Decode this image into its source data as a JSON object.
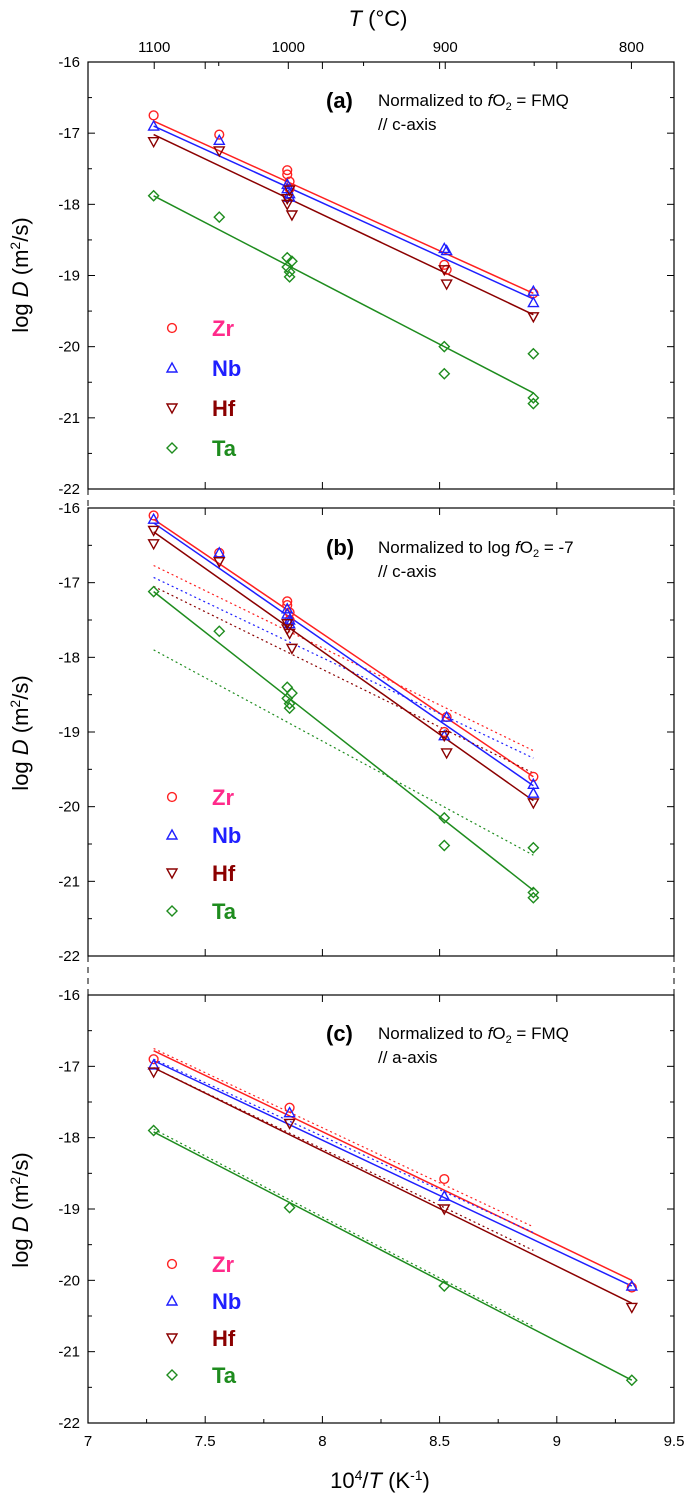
{
  "figure": {
    "top_axis_title": "T (°C)",
    "top_axis_title_var": "T",
    "top_axis_title_unit": " (°C)",
    "x_axis_title_prefix": "10",
    "x_axis_title_sup": "4",
    "x_axis_title_mid": "/",
    "x_axis_title_var": "T",
    "x_axis_title_unit": " (K",
    "x_axis_title_unit_sup": "-1",
    "x_axis_title_end": ")",
    "y_axis_title_prefix": "log ",
    "y_axis_title_var": "D",
    "y_axis_title_unit": " (m",
    "y_axis_title_unit_sup": "2",
    "y_axis_title_end": "/s)",
    "top_ticks": [
      {
        "label": "1100",
        "celsius": 1100
      },
      {
        "label": "1000",
        "celsius": 1000
      },
      {
        "label": "900",
        "celsius": 900
      },
      {
        "label": "800",
        "celsius": 800
      }
    ],
    "x_ticks": [
      "7",
      "7.5",
      "8",
      "8.5",
      "9",
      "9.5"
    ],
    "y_ticks": [
      "-16",
      "-17",
      "-18",
      "-19",
      "-20",
      "-21",
      "-22"
    ],
    "colors": {
      "Zr": "#ff2020",
      "Nb": "#1f1fff",
      "Hf": "#8b0000",
      "Ta": "#1e8c1e",
      "Zr_label": "#ff2a8a"
    },
    "legend": [
      {
        "label": "Zr",
        "marker": "circle"
      },
      {
        "label": "Nb",
        "marker": "triangle-up"
      },
      {
        "label": "Hf",
        "marker": "triangle-down"
      },
      {
        "label": "Ta",
        "marker": "diamond"
      }
    ]
  },
  "chart_data": [
    {
      "type": "scatter",
      "panel": "(a)",
      "annotation_line1_prefix": "Normalized to ",
      "annotation_line1_var": "f",
      "annotation_line1_sym": "O",
      "annotation_line1_sub": "2",
      "annotation_line1_suffix": " = FMQ",
      "annotation_line2": "// c-axis",
      "xlim": [
        7,
        9.5
      ],
      "ylim": [
        -22,
        -16
      ],
      "series": [
        {
          "name": "Zr",
          "points": [
            [
              7.28,
              -16.75
            ],
            [
              7.56,
              -17.02
            ],
            [
              7.85,
              -17.52
            ],
            [
              7.85,
              -17.58
            ],
            [
              7.86,
              -17.68
            ],
            [
              7.86,
              -17.78
            ],
            [
              8.52,
              -18.85
            ],
            [
              8.53,
              -18.92
            ],
            [
              8.9,
              -19.25
            ]
          ],
          "fit": [
            [
              7.28,
              -16.83
            ],
            [
              8.9,
              -19.25
            ]
          ]
        },
        {
          "name": "Nb",
          "points": [
            [
              7.28,
              -16.9
            ],
            [
              7.56,
              -17.1
            ],
            [
              7.85,
              -17.72
            ],
            [
              7.85,
              -17.78
            ],
            [
              7.86,
              -17.85
            ],
            [
              7.86,
              -17.9
            ],
            [
              8.52,
              -18.62
            ],
            [
              8.53,
              -18.65
            ],
            [
              8.9,
              -19.22
            ],
            [
              8.9,
              -19.38
            ]
          ],
          "fit": [
            [
              7.28,
              -16.9
            ],
            [
              8.9,
              -19.33
            ]
          ]
        },
        {
          "name": "Hf",
          "points": [
            [
              7.28,
              -17.12
            ],
            [
              7.56,
              -17.25
            ],
            [
              7.85,
              -17.92
            ],
            [
              7.85,
              -18.0
            ],
            [
              7.86,
              -17.8
            ],
            [
              7.87,
              -18.15
            ],
            [
              8.52,
              -18.92
            ],
            [
              8.53,
              -19.12
            ],
            [
              8.9,
              -19.58
            ]
          ],
          "fit": [
            [
              7.28,
              -17.02
            ],
            [
              8.9,
              -19.55
            ]
          ]
        },
        {
          "name": "Ta",
          "points": [
            [
              7.28,
              -17.88
            ],
            [
              7.56,
              -18.18
            ],
            [
              7.85,
              -18.75
            ],
            [
              7.85,
              -18.88
            ],
            [
              7.86,
              -18.95
            ],
            [
              7.86,
              -19.02
            ],
            [
              7.87,
              -18.8
            ],
            [
              8.52,
              -20.0
            ],
            [
              8.52,
              -20.38
            ],
            [
              8.9,
              -20.1
            ],
            [
              8.9,
              -20.72
            ],
            [
              8.9,
              -20.8
            ]
          ],
          "fit": [
            [
              7.28,
              -17.88
            ],
            [
              8.9,
              -20.65
            ]
          ]
        }
      ]
    },
    {
      "type": "scatter",
      "panel": "(b)",
      "annotation_line1_prefix": "Normalized to log ",
      "annotation_line1_var": "f",
      "annotation_line1_sym": "O",
      "annotation_line1_sub": "2",
      "annotation_line1_suffix": " = -7",
      "annotation_line2": "// c-axis",
      "xlim": [
        7,
        9.5
      ],
      "ylim": [
        -22,
        -16
      ],
      "series": [
        {
          "name": "Zr",
          "points": [
            [
              7.28,
              -16.1
            ],
            [
              7.56,
              -16.6
            ],
            [
              7.85,
              -17.25
            ],
            [
              7.85,
              -17.3
            ],
            [
              7.86,
              -17.4
            ],
            [
              7.86,
              -17.5
            ],
            [
              8.52,
              -19.0
            ],
            [
              8.53,
              -18.8
            ],
            [
              8.9,
              -19.6
            ]
          ],
          "fit": [
            [
              7.28,
              -16.15
            ],
            [
              8.9,
              -19.6
            ]
          ],
          "dashed": [
            [
              7.28,
              -16.77
            ],
            [
              8.9,
              -19.25
            ]
          ]
        },
        {
          "name": "Nb",
          "points": [
            [
              7.28,
              -16.15
            ],
            [
              7.56,
              -16.6
            ],
            [
              7.85,
              -17.35
            ],
            [
              7.85,
              -17.42
            ],
            [
              7.86,
              -17.5
            ],
            [
              7.86,
              -17.55
            ],
            [
              8.52,
              -19.05
            ],
            [
              8.53,
              -18.8
            ],
            [
              8.9,
              -19.7
            ],
            [
              8.9,
              -19.82
            ]
          ],
          "fit": [
            [
              7.28,
              -16.2
            ],
            [
              8.9,
              -19.72
            ]
          ],
          "dashed": [
            [
              7.28,
              -16.93
            ],
            [
              8.9,
              -19.35
            ]
          ]
        },
        {
          "name": "Hf",
          "points": [
            [
              7.28,
              -16.3
            ],
            [
              7.28,
              -16.48
            ],
            [
              7.56,
              -16.72
            ],
            [
              7.85,
              -17.55
            ],
            [
              7.85,
              -17.62
            ],
            [
              7.86,
              -17.68
            ],
            [
              7.87,
              -17.88
            ],
            [
              8.52,
              -19.05
            ],
            [
              8.53,
              -19.28
            ],
            [
              8.9,
              -19.95
            ]
          ],
          "fit": [
            [
              7.28,
              -16.32
            ],
            [
              8.9,
              -19.92
            ]
          ],
          "dashed": [
            [
              7.28,
              -17.05
            ],
            [
              8.9,
              -19.55
            ]
          ]
        },
        {
          "name": "Ta",
          "points": [
            [
              7.28,
              -17.12
            ],
            [
              7.56,
              -17.65
            ],
            [
              7.85,
              -18.4
            ],
            [
              7.85,
              -18.55
            ],
            [
              7.86,
              -18.62
            ],
            [
              7.86,
              -18.68
            ],
            [
              7.87,
              -18.48
            ],
            [
              8.52,
              -20.15
            ],
            [
              8.52,
              -20.52
            ],
            [
              8.9,
              -20.55
            ],
            [
              8.9,
              -21.15
            ],
            [
              8.9,
              -21.22
            ]
          ],
          "fit": [
            [
              7.28,
              -17.12
            ],
            [
              8.9,
              -21.12
            ]
          ],
          "dashed": [
            [
              7.28,
              -17.9
            ],
            [
              8.9,
              -20.65
            ]
          ]
        }
      ]
    },
    {
      "type": "scatter",
      "panel": "(c)",
      "annotation_line1_prefix": "Normalized to ",
      "annotation_line1_var": "f",
      "annotation_line1_sym": "O",
      "annotation_line1_sub": "2",
      "annotation_line1_suffix": " = FMQ",
      "annotation_line2": "// a-axis",
      "xlim": [
        7,
        9.5
      ],
      "ylim": [
        -22,
        -16
      ],
      "series": [
        {
          "name": "Zr",
          "points": [
            [
              7.28,
              -16.9
            ],
            [
              7.86,
              -17.58
            ],
            [
              8.52,
              -18.58
            ],
            [
              9.32,
              -20.1
            ]
          ],
          "fit": [
            [
              7.28,
              -16.78
            ],
            [
              9.32,
              -20.0
            ]
          ],
          "dashed": [
            [
              7.28,
              -16.75
            ],
            [
              8.9,
              -19.25
            ]
          ]
        },
        {
          "name": "Nb",
          "points": [
            [
              7.28,
              -16.98
            ],
            [
              7.86,
              -17.65
            ],
            [
              8.52,
              -18.82
            ],
            [
              9.32,
              -20.08
            ]
          ],
          "fit": [
            [
              7.28,
              -16.92
            ],
            [
              9.32,
              -20.08
            ]
          ],
          "dashed": [
            [
              7.28,
              -16.9
            ],
            [
              8.9,
              -19.33
            ]
          ]
        },
        {
          "name": "Hf",
          "points": [
            [
              7.28,
              -17.08
            ],
            [
              7.86,
              -17.8
            ],
            [
              8.52,
              -19.0
            ],
            [
              9.32,
              -20.38
            ]
          ],
          "fit": [
            [
              7.28,
              -17.02
            ],
            [
              9.32,
              -20.32
            ]
          ],
          "dashed": [
            [
              7.28,
              -17.02
            ],
            [
              8.9,
              -19.58
            ]
          ]
        },
        {
          "name": "Ta",
          "points": [
            [
              7.28,
              -17.9
            ],
            [
              7.86,
              -18.98
            ],
            [
              8.52,
              -20.08
            ],
            [
              9.32,
              -21.4
            ]
          ],
          "fit": [
            [
              7.28,
              -17.92
            ],
            [
              9.32,
              -21.4
            ]
          ],
          "dashed": [
            [
              7.28,
              -17.88
            ],
            [
              8.9,
              -20.65
            ]
          ]
        }
      ]
    }
  ]
}
